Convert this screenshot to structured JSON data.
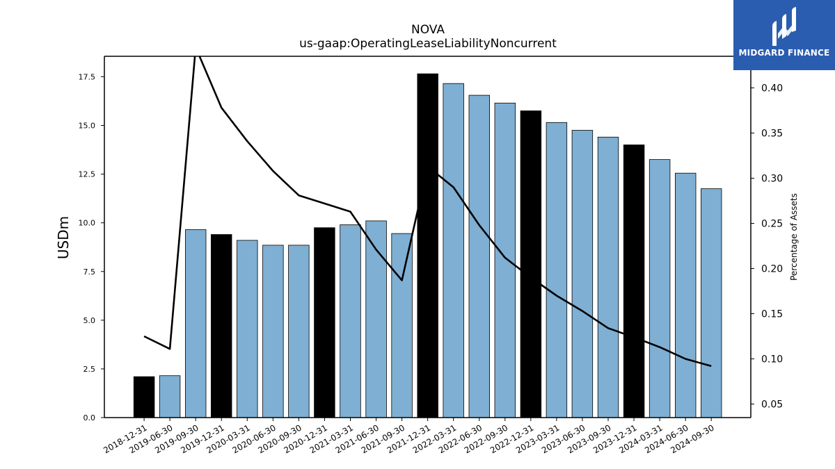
{
  "chart_data": {
    "type": "bar",
    "title": "NOVA",
    "subtitle": "us-gaap:OperatingLeaseLiabilityNoncurrent",
    "ylabel": "USDm",
    "y2label": "Percentage of Assets",
    "ylim": [
      0,
      18.55
    ],
    "y2lim": [
      0.035,
      0.435
    ],
    "yticks": [
      "0.0",
      "2.5",
      "5.0",
      "7.5",
      "10.0",
      "12.5",
      "15.0",
      "17.5"
    ],
    "y2ticks": [
      "0.05",
      "0.10",
      "0.15",
      "0.20",
      "0.25",
      "0.30",
      "0.35",
      "0.40"
    ],
    "categories": [
      "2018-12-31",
      "2019-06-30",
      "2019-09-30",
      "2019-12-31",
      "2020-03-31",
      "2020-06-30",
      "2020-09-30",
      "2020-12-31",
      "2021-03-31",
      "2021-06-30",
      "2021-09-30",
      "2021-12-31",
      "2022-03-31",
      "2022-06-30",
      "2022-09-30",
      "2022-12-31",
      "2023-03-31",
      "2023-06-30",
      "2023-09-30",
      "2023-12-31",
      "2024-03-31",
      "2024-06-30",
      "2024-09-30"
    ],
    "series": [
      {
        "kind": "bar",
        "axis": "left",
        "values": [
          2.1,
          2.15,
          9.65,
          9.4,
          9.1,
          8.85,
          8.85,
          9.75,
          9.9,
          10.1,
          9.45,
          17.65,
          17.15,
          16.55,
          16.15,
          15.75,
          15.15,
          14.75,
          14.4,
          14.0,
          13.25,
          12.55,
          11.75
        ],
        "colors": [
          "#000000",
          "#7fafd3",
          "#7fafd3",
          "#000000",
          "#7fafd3",
          "#7fafd3",
          "#7fafd3",
          "#000000",
          "#7fafd3",
          "#7fafd3",
          "#7fafd3",
          "#000000",
          "#7fafd3",
          "#7fafd3",
          "#7fafd3",
          "#000000",
          "#7fafd3",
          "#7fafd3",
          "#7fafd3",
          "#000000",
          "#7fafd3",
          "#7fafd3",
          "#7fafd3"
        ]
      },
      {
        "kind": "line",
        "axis": "right",
        "color": "#000000",
        "values": [
          0.125,
          0.111,
          0.445,
          0.378,
          0.341,
          0.308,
          0.281,
          0.272,
          0.263,
          0.221,
          0.187,
          0.313,
          0.29,
          0.248,
          0.212,
          0.19,
          0.17,
          0.153,
          0.134,
          0.124,
          0.113,
          0.1,
          0.092
        ]
      }
    ],
    "grid": false,
    "legend": "none"
  },
  "logo": {
    "text": "MIDGARD FINANCE",
    "color": "#2a5db0"
  }
}
